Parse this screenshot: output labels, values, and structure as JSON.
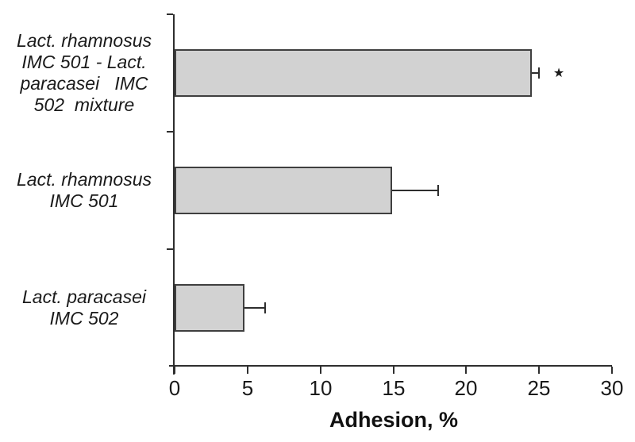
{
  "chart_data": {
    "type": "bar",
    "orientation": "horizontal",
    "title": "",
    "xlabel": "Adhesion, %",
    "ylabel": "",
    "xlim": [
      0,
      30
    ],
    "xticks": [
      0,
      5,
      10,
      15,
      20,
      25,
      30
    ],
    "grid": false,
    "legend": false,
    "categories": [
      "Lact. rhamnosus\nIMC 501 - Lact.\nparacasei   IMC\n502  mixture",
      "Lact. rhamnosus\nIMC 501",
      "Lact. paracasei\nIMC 502"
    ],
    "values": [
      24.5,
      14.9,
      4.8
    ],
    "errors": [
      0.5,
      3.2,
      1.4
    ],
    "annotations": [
      "★",
      "",
      ""
    ],
    "colors": {
      "bar_fill": "#d2d2d2",
      "bar_border": "#3f3f3f",
      "axis": "#2e2e2e",
      "text": "#1a1a1a",
      "background": "#ffffff"
    }
  }
}
